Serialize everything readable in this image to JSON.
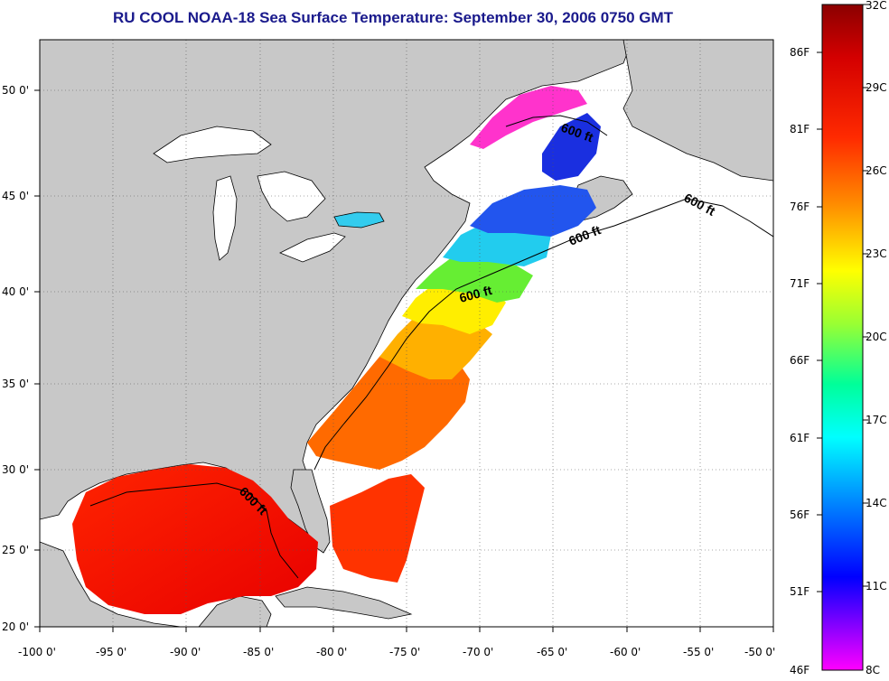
{
  "title": "RU COOL  NOAA-18  Sea Surface Temperature:  September 30, 2006 0750 GMT",
  "map": {
    "lon_labels": [
      "-100 0'",
      "-95 0'",
      "-90 0'",
      "-85 0'",
      "-80 0'",
      "-75 0'",
      "-70 0'",
      "-65 0'",
      "-60 0'",
      "-55 0'",
      "-50 0'"
    ],
    "lat_labels": [
      "50 0'",
      "45 0'",
      "40 0'",
      "35 0'",
      "30 0'",
      "25 0'",
      "20 0'"
    ],
    "contour_labels": [
      "600 ft",
      "600 ft",
      "600 ft",
      "600 ft",
      "600 ft"
    ],
    "colors": {
      "land": "#c8c8c8",
      "cloud": "#ffffff",
      "coast": "#000000"
    }
  },
  "colorbar": {
    "fahrenheit_labels": [
      "86F",
      "81F",
      "76F",
      "71F",
      "66F",
      "61F",
      "56F",
      "51F",
      "46F"
    ],
    "celsius_labels": [
      "32C",
      "29C",
      "26C",
      "23C",
      "20C",
      "17C",
      "14C",
      "11C",
      "8C"
    ],
    "gradient": [
      "#8b0000",
      "#ff0000",
      "#ff8c00",
      "#ffff00",
      "#7fff00",
      "#00ffff",
      "#0080ff",
      "#0000ff",
      "#8000ff",
      "#ff00ff"
    ]
  }
}
